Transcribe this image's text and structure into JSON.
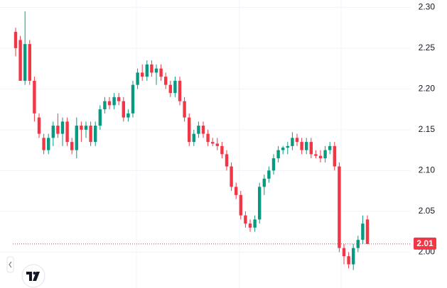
{
  "chart_data": {
    "type": "candlestick",
    "open": [
      2.27,
      2.26,
      2.21,
      2.255,
      2.21,
      2.165,
      2.14,
      2.125,
      2.14,
      2.155,
      2.145,
      2.16,
      2.135,
      2.125,
      2.155,
      2.15,
      2.155,
      2.135,
      2.155,
      2.175,
      2.185,
      2.18,
      2.19,
      2.185,
      2.165,
      2.17,
      2.205,
      2.22,
      2.215,
      2.23,
      2.22,
      2.225,
      2.215,
      2.205,
      2.195,
      2.21,
      2.185,
      2.165,
      2.135,
      2.145,
      2.155,
      2.145,
      2.135,
      2.133,
      2.13,
      2.12,
      2.105,
      2.08,
      2.07,
      2.045,
      2.035,
      2.03,
      2.04,
      2.08,
      2.09,
      2.1,
      2.115,
      2.125,
      2.128,
      2.13,
      2.14,
      2.135,
      2.125,
      2.135,
      2.12,
      2.118,
      2.115,
      2.125,
      2.13,
      2.105,
      2.005,
      1.995,
      1.985,
      2.005,
      2.015,
      2.04
    ],
    "high": [
      2.275,
      2.265,
      2.295,
      2.26,
      2.215,
      2.17,
      2.145,
      2.145,
      2.16,
      2.17,
      2.165,
      2.165,
      2.14,
      2.165,
      2.16,
      2.16,
      2.16,
      2.16,
      2.18,
      2.19,
      2.19,
      2.195,
      2.195,
      2.19,
      2.175,
      2.21,
      2.225,
      2.23,
      2.235,
      2.235,
      2.23,
      2.23,
      2.22,
      2.21,
      2.215,
      2.215,
      2.19,
      2.17,
      2.15,
      2.16,
      2.16,
      2.15,
      2.14,
      2.14,
      2.135,
      2.125,
      2.11,
      2.085,
      2.075,
      2.05,
      2.04,
      2.045,
      2.085,
      2.095,
      2.105,
      2.12,
      2.13,
      2.13,
      2.135,
      2.147,
      2.145,
      2.14,
      2.14,
      2.14,
      2.125,
      2.125,
      2.13,
      2.135,
      2.135,
      2.11,
      2.01,
      2.0,
      2.01,
      2.02,
      2.045,
      2.045
    ],
    "low": [
      2.24,
      2.21,
      2.205,
      2.205,
      2.16,
      2.14,
      2.12,
      2.12,
      2.13,
      2.14,
      2.13,
      2.13,
      2.12,
      2.115,
      2.135,
      2.14,
      2.13,
      2.13,
      2.15,
      2.17,
      2.175,
      2.175,
      2.18,
      2.16,
      2.16,
      2.165,
      2.2,
      2.21,
      2.21,
      2.215,
      2.205,
      2.21,
      2.2,
      2.19,
      2.19,
      2.18,
      2.16,
      2.13,
      2.13,
      2.14,
      2.14,
      2.13,
      2.13,
      2.125,
      2.115,
      2.1,
      2.075,
      2.065,
      2.04,
      2.03,
      2.025,
      2.025,
      2.035,
      2.07,
      2.085,
      2.095,
      2.11,
      2.12,
      2.12,
      2.125,
      2.13,
      2.12,
      2.12,
      2.115,
      2.115,
      2.11,
      2.11,
      2.12,
      2.1,
      2.0,
      1.985,
      1.98,
      1.978,
      2.0,
      2.01,
      2.01
    ],
    "close": [
      2.25,
      2.21,
      2.255,
      2.21,
      2.17,
      2.145,
      2.125,
      2.14,
      2.155,
      2.145,
      2.16,
      2.135,
      2.125,
      2.155,
      2.15,
      2.155,
      2.135,
      2.155,
      2.175,
      2.185,
      2.18,
      2.19,
      2.185,
      2.165,
      2.17,
      2.205,
      2.22,
      2.215,
      2.23,
      2.22,
      2.225,
      2.215,
      2.205,
      2.195,
      2.21,
      2.185,
      2.165,
      2.135,
      2.145,
      2.155,
      2.145,
      2.135,
      2.133,
      2.13,
      2.12,
      2.105,
      2.08,
      2.07,
      2.045,
      2.035,
      2.03,
      2.04,
      2.08,
      2.09,
      2.1,
      2.115,
      2.125,
      2.128,
      2.13,
      2.14,
      2.135,
      2.125,
      2.135,
      2.12,
      2.118,
      2.115,
      2.125,
      2.13,
      2.105,
      2.005,
      1.995,
      1.985,
      2.005,
      2.015,
      2.035,
      2.01
    ],
    "up_color": "#089981",
    "down_color": "#f23645",
    "ylim": [
      1.956,
      2.309
    ],
    "yticks": [
      {
        "value": 2.0,
        "label": "2.00"
      },
      {
        "value": 2.05,
        "label": "2.05"
      },
      {
        "value": 2.1,
        "label": "2.10"
      },
      {
        "value": 2.15,
        "label": "2.15"
      },
      {
        "value": 2.2,
        "label": "2.20"
      },
      {
        "value": 2.25,
        "label": "2.25"
      },
      {
        "value": 2.3,
        "label": "2.30"
      }
    ],
    "last_price": 2.01,
    "grid": true
  }
}
